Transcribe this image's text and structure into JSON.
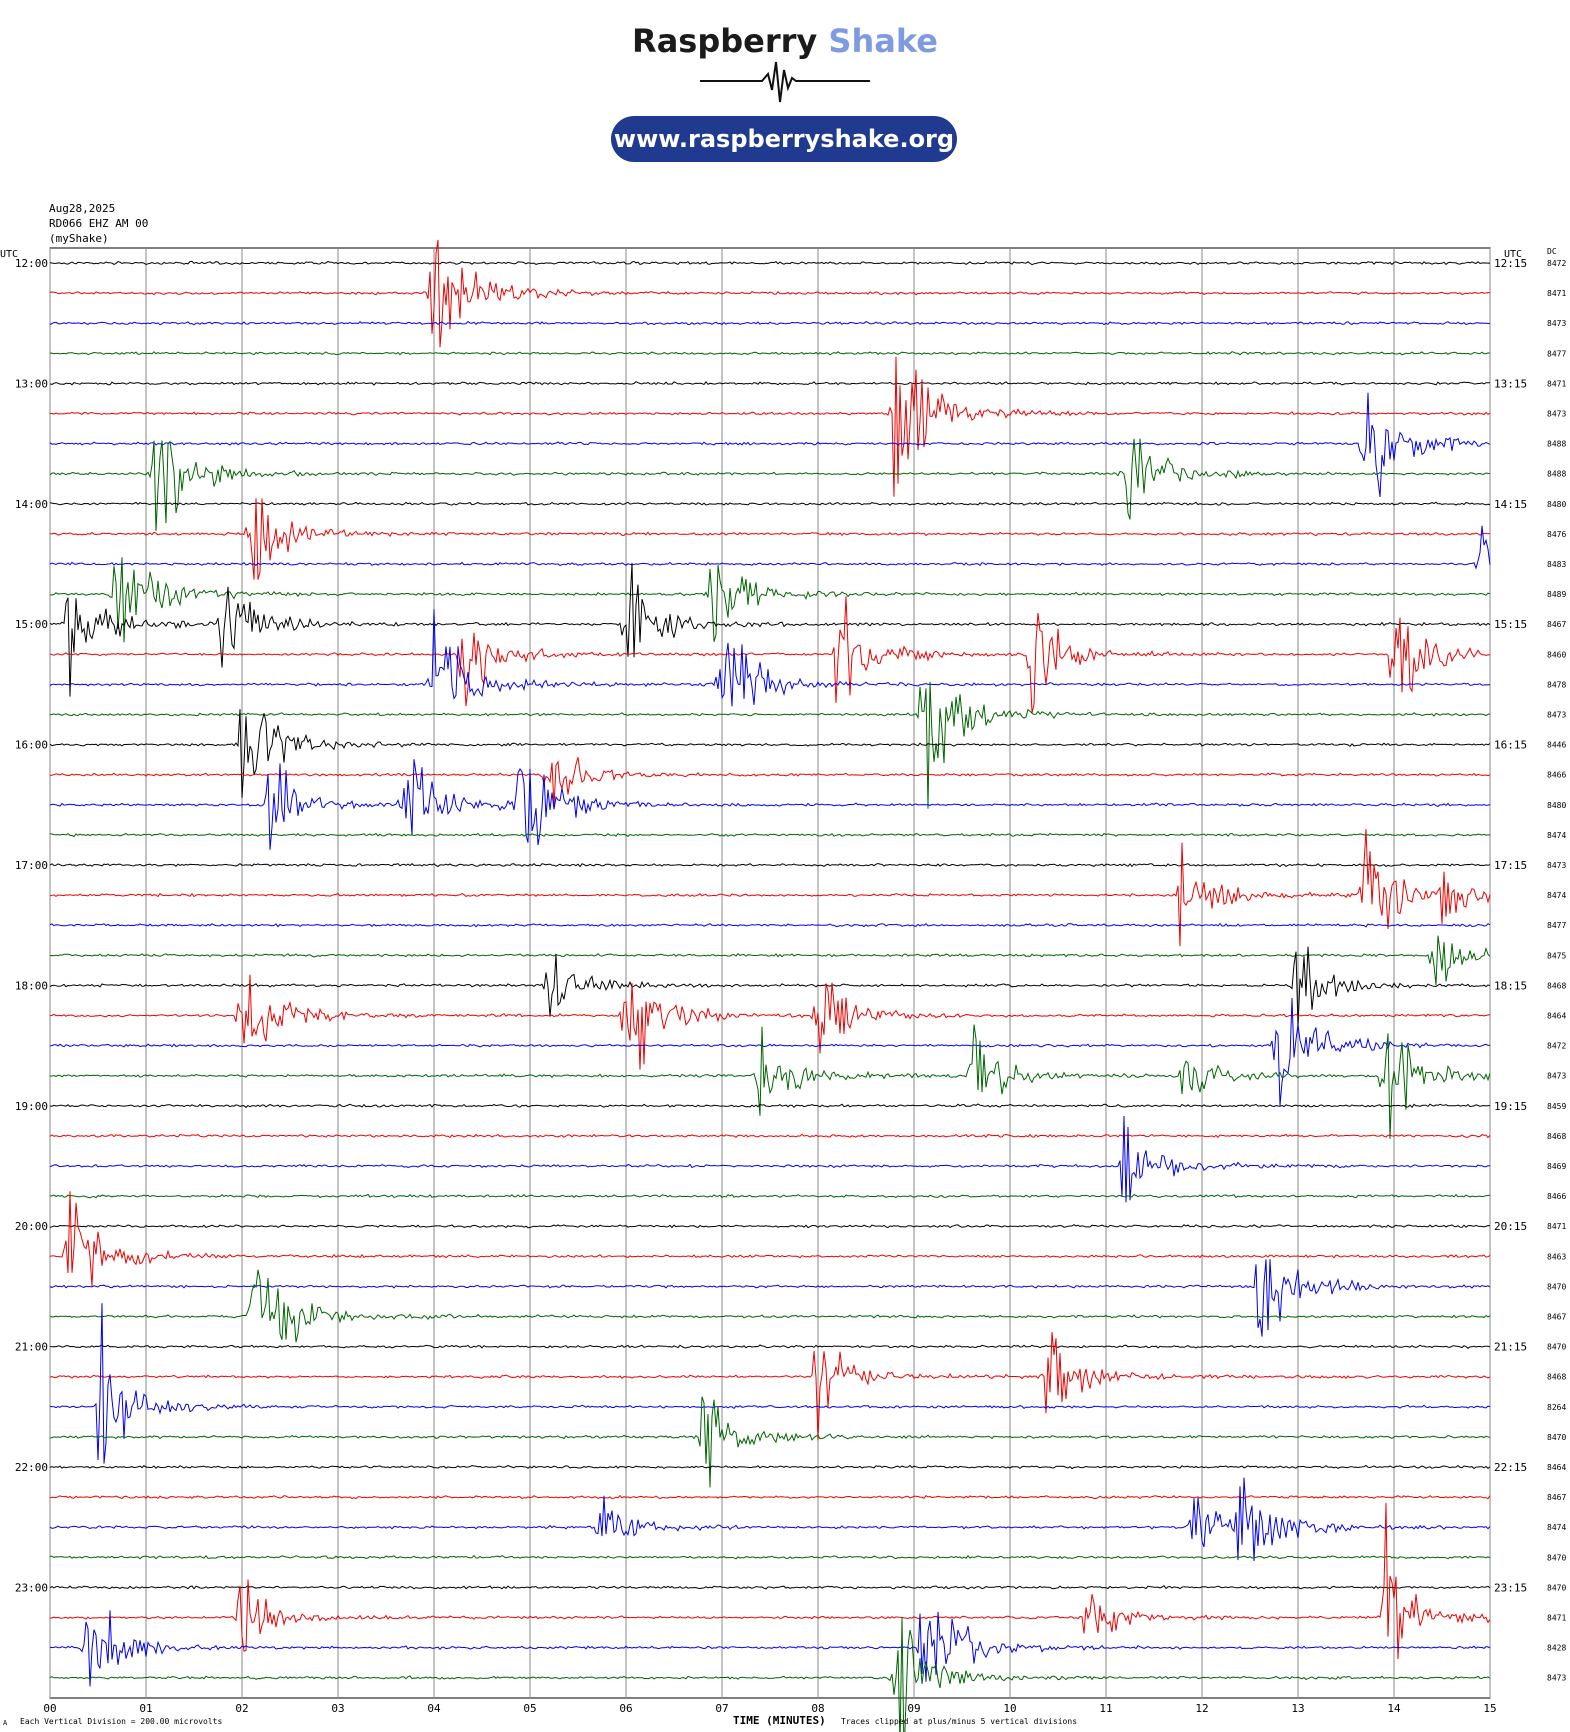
{
  "logo": {
    "word1": "Raspberry",
    "word2": "Shake",
    "url": "www.raspberryshake.org"
  },
  "header": {
    "date": "Aug28,2025",
    "station": "RD066 EHZ AM 00",
    "source": "(myShake)"
  },
  "footer": {
    "scale_note": "Each Vertical Division =  200.00 microvolts",
    "xlabel": "TIME (MINUTES)",
    "clip_note": "Traces clipped at plus/minus 5 vertical divisions",
    "corner_mark": "A"
  },
  "chart_data": {
    "type": "line",
    "title": "",
    "xlabel": "TIME (MINUTES)",
    "ylabel": "",
    "left_axis_title": "UTC",
    "right_axis_title": "UTC",
    "dc_title": "DC",
    "xlim": [
      0,
      15
    ],
    "x_ticks": [
      "00",
      "01",
      "02",
      "03",
      "04",
      "05",
      "06",
      "07",
      "08",
      "09",
      "10",
      "11",
      "12",
      "13",
      "14",
      "15"
    ],
    "trace_colors": [
      "#000000",
      "#ee0000",
      "#0000ee",
      "#006400"
    ],
    "grid": true,
    "left_labels": [
      "12:00",
      "13:00",
      "14:00",
      "15:00",
      "16:00",
      "17:00",
      "18:00",
      "19:00",
      "20:00",
      "21:00",
      "22:00",
      "23:00"
    ],
    "right_labels": [
      "12:15",
      "13:15",
      "14:15",
      "15:15",
      "16:15",
      "17:15",
      "18:15",
      "19:15",
      "20:15",
      "21:15",
      "22:15",
      "23:15"
    ],
    "dc_values": [
      "8472",
      "8471",
      "8473",
      "8477",
      "8471",
      "8473",
      "8488",
      "8488",
      "8480",
      "8476",
      "8483",
      "8489",
      "8467",
      "8460",
      "8478",
      "8473",
      "8446",
      "8466",
      "8480",
      "8474",
      "8473",
      "8474",
      "8477",
      "8475",
      "8468",
      "8464",
      "8472",
      "8473",
      "8459",
      "8468",
      "8469",
      "8466",
      "8471",
      "8463",
      "8470",
      "8467",
      "8470",
      "8468",
      "8264",
      "8470",
      "8464",
      "8467",
      "8474",
      "8470",
      "8470",
      "8471",
      "8428",
      "8473"
    ],
    "events": [
      {
        "row": 1,
        "minute": 4.0,
        "amplitude": 5
      },
      {
        "row": 5,
        "minute": 8.8,
        "amplitude": 5
      },
      {
        "row": 6,
        "minute": 13.7,
        "amplitude": 3.5
      },
      {
        "row": 7,
        "minute": 1.1,
        "amplitude": 3.5
      },
      {
        "row": 7,
        "minute": 11.2,
        "amplitude": 3
      },
      {
        "row": 9,
        "minute": 2.1,
        "amplitude": 2.5
      },
      {
        "row": 10,
        "minute": 14.9,
        "amplitude": 1.2
      },
      {
        "row": 11,
        "minute": 0.7,
        "amplitude": 4
      },
      {
        "row": 11,
        "minute": 6.9,
        "amplitude": 3
      },
      {
        "row": 12,
        "minute": 0.2,
        "amplitude": 3
      },
      {
        "row": 12,
        "minute": 1.8,
        "amplitude": 3
      },
      {
        "row": 12,
        "minute": 6.0,
        "amplitude": 3
      },
      {
        "row": 13,
        "minute": 4.3,
        "amplitude": 2.5
      },
      {
        "row": 13,
        "minute": 8.2,
        "amplitude": 3
      },
      {
        "row": 13,
        "minute": 10.2,
        "amplitude": 3
      },
      {
        "row": 13,
        "minute": 14.0,
        "amplitude": 3.5
      },
      {
        "row": 14,
        "minute": 4.0,
        "amplitude": 3
      },
      {
        "row": 14,
        "minute": 7.0,
        "amplitude": 3
      },
      {
        "row": 15,
        "minute": 9.1,
        "amplitude": 5
      },
      {
        "row": 16,
        "minute": 2.0,
        "amplitude": 4
      },
      {
        "row": 17,
        "minute": 5.2,
        "amplitude": 2
      },
      {
        "row": 18,
        "minute": 2.3,
        "amplitude": 2.5
      },
      {
        "row": 18,
        "minute": 3.7,
        "amplitude": 3
      },
      {
        "row": 18,
        "minute": 4.9,
        "amplitude": 3.5
      },
      {
        "row": 21,
        "minute": 11.8,
        "amplitude": 3
      },
      {
        "row": 21,
        "minute": 13.7,
        "amplitude": 3
      },
      {
        "row": 21,
        "minute": 14.5,
        "amplitude": 1.5
      },
      {
        "row": 23,
        "minute": 14.4,
        "amplitude": 1.5
      },
      {
        "row": 24,
        "minute": 5.2,
        "amplitude": 2
      },
      {
        "row": 24,
        "minute": 13.0,
        "amplitude": 2
      },
      {
        "row": 25,
        "minute": 2.0,
        "amplitude": 3
      },
      {
        "row": 25,
        "minute": 6.0,
        "amplitude": 4
      },
      {
        "row": 25,
        "minute": 8.0,
        "amplitude": 2
      },
      {
        "row": 26,
        "minute": 12.8,
        "amplitude": 3.5
      },
      {
        "row": 27,
        "minute": 7.4,
        "amplitude": 2.5
      },
      {
        "row": 27,
        "minute": 9.6,
        "amplitude": 2
      },
      {
        "row": 27,
        "minute": 11.8,
        "amplitude": 1.5
      },
      {
        "row": 27,
        "minute": 13.9,
        "amplitude": 3
      },
      {
        "row": 30,
        "minute": 11.2,
        "amplitude": 2.5
      },
      {
        "row": 33,
        "minute": 0.2,
        "amplitude": 3.5
      },
      {
        "row": 34,
        "minute": 12.6,
        "amplitude": 3.5
      },
      {
        "row": 35,
        "minute": 2.1,
        "amplitude": 5
      },
      {
        "row": 37,
        "minute": 8.0,
        "amplitude": 2.5
      },
      {
        "row": 37,
        "minute": 10.4,
        "amplitude": 2.5
      },
      {
        "row": 38,
        "minute": 0.5,
        "amplitude": 4
      },
      {
        "row": 39,
        "minute": 6.8,
        "amplitude": 2.5
      },
      {
        "row": 42,
        "minute": 5.7,
        "amplitude": 1.5
      },
      {
        "row": 42,
        "minute": 11.9,
        "amplitude": 2
      },
      {
        "row": 42,
        "minute": 12.4,
        "amplitude": 2.5
      },
      {
        "row": 45,
        "minute": 2.0,
        "amplitude": 2
      },
      {
        "row": 45,
        "minute": 10.8,
        "amplitude": 1.5
      },
      {
        "row": 45,
        "minute": 13.9,
        "amplitude": 3.5
      },
      {
        "row": 46,
        "minute": 0.4,
        "amplitude": 3
      },
      {
        "row": 46,
        "minute": 9.1,
        "amplitude": 4
      },
      {
        "row": 47,
        "minute": 8.8,
        "amplitude": 3.5
      }
    ]
  }
}
